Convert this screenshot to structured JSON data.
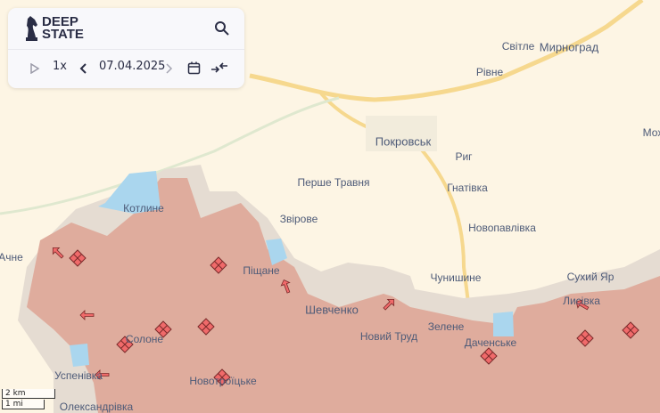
{
  "app": {
    "logo_text_line1": "DEEP",
    "logo_text_line2": "STATE"
  },
  "controls": {
    "speed": "1x",
    "date": "07.04.2025",
    "icons": [
      "play-icon",
      "chevron-left-icon",
      "chevron-right-icon",
      "calendar-icon",
      "collapse-icon",
      "search-icon"
    ]
  },
  "colors": {
    "background": "#fdf5e4",
    "occupied": "#dfac9d",
    "gray_zone": "#e5dcd2",
    "water": "#aad6ee",
    "road_major": "#f6d88e",
    "marker": "#f06a6a"
  },
  "places": [
    "Світле",
    "Мирноград",
    "Рівне",
    "Покровськ",
    "Мох",
    "Риг",
    "Перше Травня",
    "Гнатівка",
    "Котлине",
    "Звірове",
    "Новопавлівка",
    "Ачне",
    "Піщане",
    "Чунишине",
    "Сухий Яр",
    "Лисівка",
    "Шевченко",
    "Солоне",
    "Новий Труд",
    "Зелене",
    "Даченське",
    "Успенівка",
    "Новотроїцьке",
    "Олександрівка"
  ],
  "scale": {
    "metric": "2 km",
    "imperial": "1 mi"
  }
}
